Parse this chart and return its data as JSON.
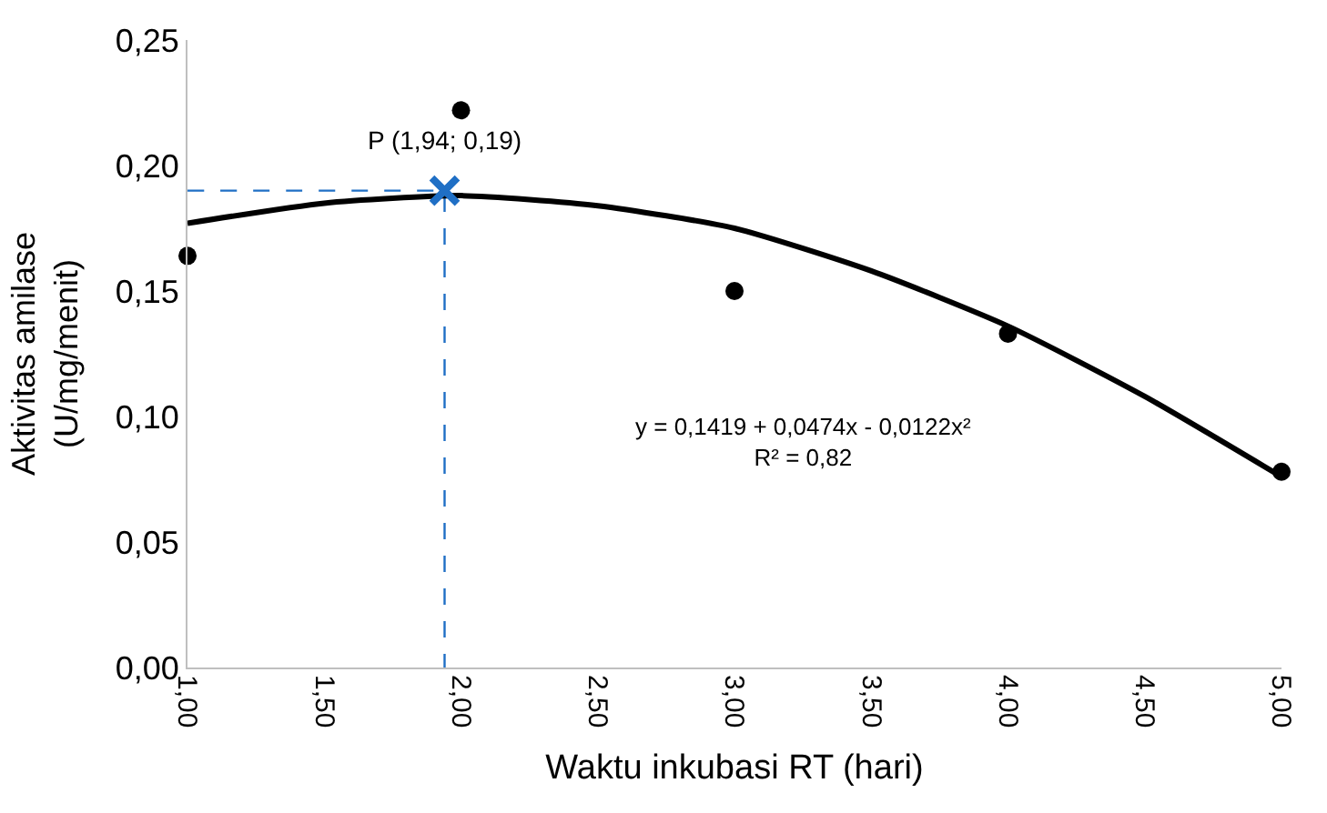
{
  "chart_data": {
    "type": "scatter",
    "xlabel": "Waktu inkubasi RT (hari)",
    "ylabel": "Aktivitas amilase\n(U/mg/menit)",
    "xlim": [
      1,
      5
    ],
    "ylim": [
      0,
      0.25
    ],
    "xticks": [
      {
        "value": 1,
        "label": "1,00"
      },
      {
        "value": 1.5,
        "label": "1,50"
      },
      {
        "value": 2,
        "label": "2,00"
      },
      {
        "value": 2.5,
        "label": "2,50"
      },
      {
        "value": 3,
        "label": "3,00"
      },
      {
        "value": 3.5,
        "label": "3,50"
      },
      {
        "value": 4,
        "label": "4,00"
      },
      {
        "value": 4.5,
        "label": "4,50"
      },
      {
        "value": 5,
        "label": "5,00"
      }
    ],
    "yticks": [
      {
        "value": 0,
        "label": "0,00"
      },
      {
        "value": 0.05,
        "label": "0,05"
      },
      {
        "value": 0.1,
        "label": "0,10"
      },
      {
        "value": 0.15,
        "label": "0,15"
      },
      {
        "value": 0.2,
        "label": "0,20"
      },
      {
        "value": 0.25,
        "label": "0,25"
      }
    ],
    "series": [
      {
        "type": "line",
        "color": "#1f6fc5",
        "line_style": "dashed",
        "marker": "none",
        "x": [
          1,
          1.94,
          1.94
        ],
        "values": [
          0.19,
          0.19,
          0
        ]
      },
      {
        "type": "line",
        "color": "#000000",
        "line_style": "solid",
        "marker": "none",
        "x": [
          1,
          1.5,
          2,
          2.5,
          3,
          3.5,
          4,
          4.5,
          5
        ],
        "values": [
          0.177,
          0.185,
          0.188,
          0.184,
          0.175,
          0.158,
          0.136,
          0.108,
          0.076
        ]
      },
      {
        "color": "#000000",
        "marker": "circle",
        "x": [
          1,
          2,
          3,
          4,
          5
        ],
        "values": [
          0.164,
          0.222,
          0.15,
          0.133,
          0.078
        ]
      },
      {
        "color": "#1f6fc5",
        "marker": "cross",
        "x": [
          1.94
        ],
        "values": [
          0.19
        ]
      }
    ],
    "annotations": [
      {
        "text": "P (1,94; 0,19)",
        "x": 1.94,
        "y": 0.19
      },
      "y = 0,1419 + 0,0474x - 0,0122x²\nR² = 0,82"
    ]
  }
}
